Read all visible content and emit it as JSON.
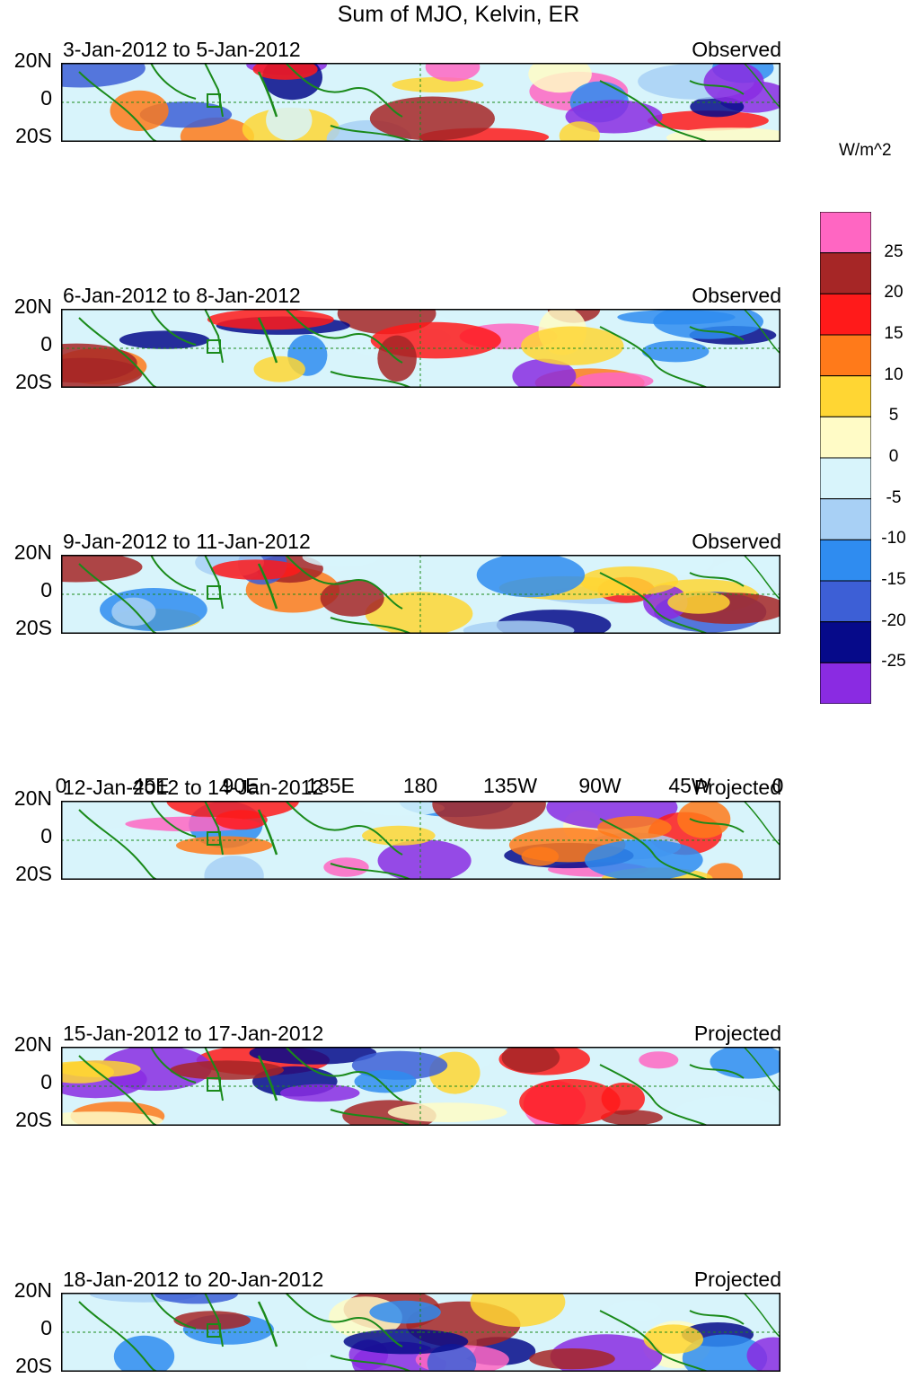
{
  "title": "Sum of MJO, Kelvin, ER",
  "panels": [
    {
      "date_range": "3-Jan-2012 to 5-Jan-2012",
      "status": "Observed"
    },
    {
      "date_range": "6-Jan-2012 to 8-Jan-2012",
      "status": "Observed"
    },
    {
      "date_range": "9-Jan-2012 to 11-Jan-2012",
      "status": "Observed"
    },
    {
      "date_range": "12-Jan-2012 to 14-Jan-2012",
      "status": "Projected"
    },
    {
      "date_range": "15-Jan-2012 to 17-Jan-2012",
      "status": "Projected"
    },
    {
      "date_range": "18-Jan-2012 to 20-Jan-2012",
      "status": "Projected"
    }
  ],
  "y_labels": [
    "20N",
    "0",
    "20S"
  ],
  "x_labels": [
    "0",
    "45E",
    "90E",
    "135E",
    "180",
    "135W",
    "90W",
    "45W",
    "0"
  ],
  "legend": {
    "unit": "W/m^2",
    "labels": [
      "25",
      "20",
      "15",
      "10",
      "5",
      "0",
      "-5",
      "-10",
      "-15",
      "-20",
      "-25"
    ],
    "colors": [
      "#ff66c2",
      "#a62626",
      "#ff1a1a",
      "#ff7a1a",
      "#ffd633",
      "#fffbc6",
      "#d8f4fb",
      "#a8d0f5",
      "#2f8cf0",
      "#3d5fd6",
      "#060a8a",
      "#8a2be2"
    ]
  },
  "colors": {
    "coast": "#1a8a1a",
    "frame": "#000000"
  }
}
